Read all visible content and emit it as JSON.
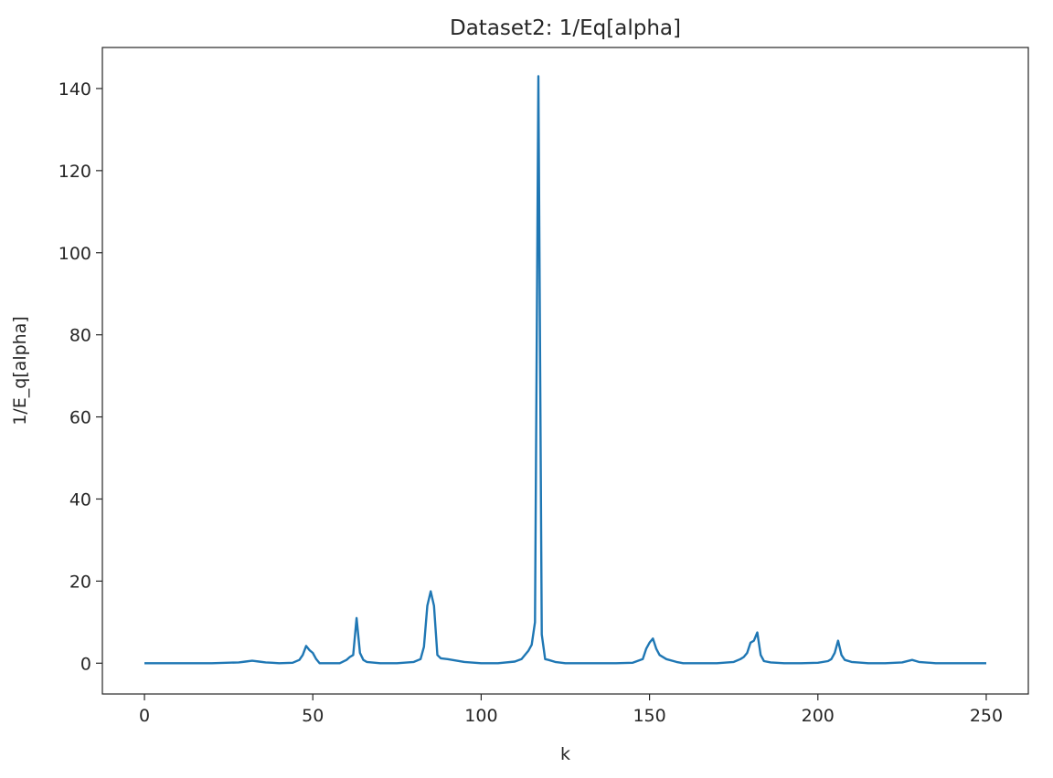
{
  "chart_data": {
    "type": "line",
    "title": "Dataset2: 1/Eq[alpha]",
    "xlabel": "k",
    "ylabel": "1/E_q[alpha]",
    "xlim": [
      -12.5,
      262.5
    ],
    "ylim": [
      -7.5,
      150
    ],
    "xticks": [
      0,
      50,
      100,
      150,
      200,
      250
    ],
    "yticks": [
      0,
      20,
      40,
      60,
      80,
      100,
      120,
      140
    ],
    "grid": false,
    "legend": "none",
    "series": [
      {
        "color": "#1f77b4",
        "x": [
          0,
          10,
          20,
          28,
          30,
          32,
          34,
          36,
          38,
          40,
          44,
          46,
          47,
          48,
          49,
          50,
          51,
          52,
          55,
          58,
          60,
          61,
          62,
          63,
          64,
          65,
          66,
          70,
          75,
          80,
          82,
          83,
          84,
          85,
          86,
          87,
          88,
          90,
          95,
          100,
          105,
          110,
          112,
          114,
          115,
          116,
          117,
          118,
          119,
          120,
          122,
          125,
          130,
          140,
          145,
          148,
          149,
          150,
          151,
          152,
          153,
          155,
          158,
          160,
          165,
          170,
          175,
          177,
          178,
          179,
          180,
          181,
          182,
          183,
          184,
          186,
          190,
          195,
          200,
          203,
          204,
          205,
          206,
          207,
          208,
          210,
          215,
          220,
          225,
          228,
          230,
          235,
          240,
          245,
          250
        ],
        "y": [
          0,
          0,
          0,
          0.2,
          0.4,
          0.6,
          0.4,
          0.2,
          0.1,
          0,
          0.1,
          0.8,
          2.0,
          4.2,
          3.2,
          2.5,
          1.0,
          0,
          0,
          0,
          0.8,
          1.5,
          2.0,
          11,
          2.5,
          0.8,
          0.3,
          0,
          0,
          0.3,
          1.0,
          4.0,
          14,
          17.5,
          14,
          2.0,
          1.2,
          1.0,
          0.3,
          0,
          0,
          0.4,
          1.0,
          3.0,
          4.5,
          10,
          143,
          7,
          1.0,
          0.8,
          0.3,
          0,
          0,
          0,
          0.1,
          1.0,
          3.5,
          5.0,
          6.0,
          3.5,
          2.0,
          1.0,
          0.3,
          0,
          0,
          0,
          0.3,
          1.0,
          1.5,
          2.5,
          5.0,
          5.5,
          7.5,
          2.0,
          0.5,
          0.2,
          0,
          0,
          0.1,
          0.5,
          1.0,
          2.5,
          5.5,
          2.0,
          0.8,
          0.3,
          0,
          0,
          0.2,
          0.8,
          0.3,
          0,
          0,
          0,
          0
        ]
      }
    ]
  }
}
